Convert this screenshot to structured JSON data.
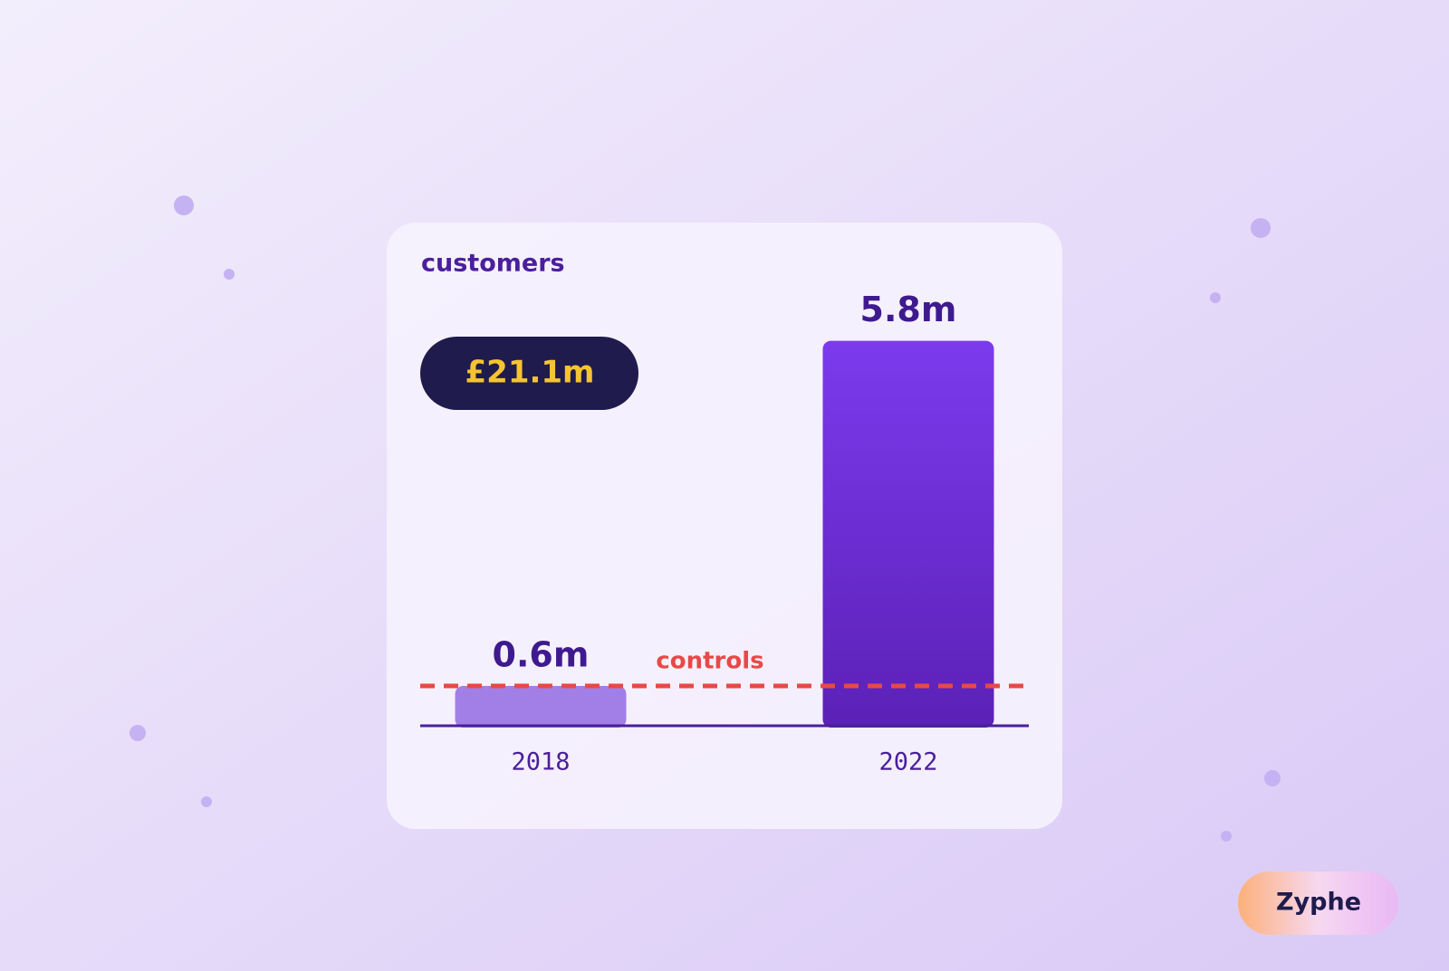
{
  "chart_data": {
    "type": "bar",
    "title": "customers",
    "categories": [
      "2018",
      "2022"
    ],
    "values": [
      0.6,
      5.8
    ],
    "value_labels": [
      "0.6m",
      "5.8m"
    ],
    "colors": [
      "#a27fe6",
      "#6a2bd8"
    ],
    "ylim": [
      0,
      6
    ],
    "reference_line": {
      "label": "controls",
      "value": 0.6,
      "color": "#e94848"
    },
    "badge": "£21.1m"
  },
  "brand": "Zyphe"
}
